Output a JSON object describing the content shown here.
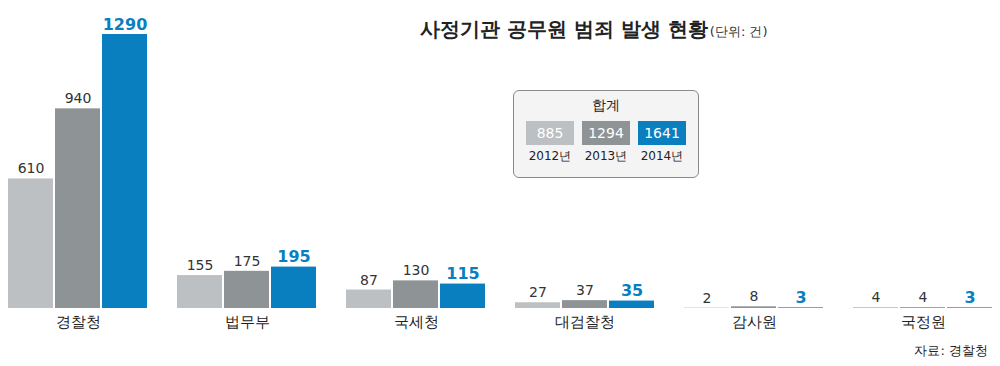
{
  "chart_data": {
    "type": "bar",
    "title": "사정기관 공무원 범죄 발생 현황",
    "subtitle": "(단위: 건)",
    "categories": [
      "경찰청",
      "법무부",
      "국세청",
      "대검찰청",
      "감사원",
      "국정원"
    ],
    "series": [
      {
        "name": "2012년",
        "color": "#bcc0c2",
        "values": [
          610,
          155,
          87,
          27,
          2,
          4
        ]
      },
      {
        "name": "2013년",
        "color": "#8e9396",
        "values": [
          940,
          175,
          130,
          37,
          8,
          4
        ]
      },
      {
        "name": "2014년",
        "color": "#0a7fc0",
        "values": [
          1290,
          195,
          115,
          35,
          3,
          3
        ]
      }
    ],
    "ylim": [
      0,
      1290
    ],
    "tick_labels": "x",
    "data_labels": true,
    "grid": false,
    "totals": {
      "title": "합계",
      "categories": [
        "2012년",
        "2013년",
        "2014년"
      ],
      "values": [
        885,
        1294,
        1641
      ]
    },
    "source": "자료: 경찰청"
  }
}
